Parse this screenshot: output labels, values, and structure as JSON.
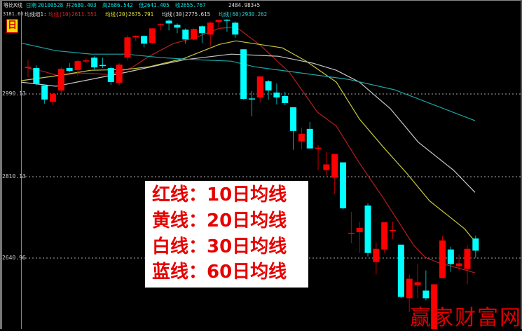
{
  "header": {
    "chart_mode": "等比K线",
    "date_label": "日期",
    "date_value": "20100528",
    "open": "开2680.403",
    "high": "高2686.542",
    "low": "低2641.405",
    "close": "收2655.767",
    "low_marker": "2484.983+5"
  },
  "ma_header": {
    "group_label": "均线组1:",
    "ma10": "均线(10)2611.551",
    "ma20": "均线(20)2675.791",
    "ma30": "均线(30)2775.615",
    "ma60": "均线(60)2930.262"
  },
  "period_icon": "日",
  "y_axis": {
    "scale": "log",
    "ticks": [
      "3181.66",
      "2990.13",
      "2810.13",
      "2640.96"
    ]
  },
  "legend": [
    "红线：10日均线",
    "黄线：20日均线",
    "白线：30日均线",
    "蓝线：60日均线"
  ],
  "watermark": "赢家财富网",
  "colors": {
    "up": "#ff0000",
    "down": "#00ffff",
    "ma10": "#b41e1e",
    "ma20": "#c8c83c",
    "ma30": "#c8c8c8",
    "ma60": "#1ea5a5",
    "grid": "#aaaaaa"
  },
  "chart_data": {
    "type": "candlestick",
    "ohlc": [
      [
        3050.9,
        3068.6,
        3028.5,
        3052.0
      ],
      [
        3049.3,
        3055.7,
        3009.3,
        3012.5
      ],
      [
        3009.3,
        3012.5,
        2968.1,
        2977.5
      ],
      [
        2972.8,
        2993.3,
        2964.9,
        2990.1
      ],
      [
        2998.0,
        3050.9,
        2991.7,
        3047.7
      ],
      [
        3049.3,
        3060.5,
        3039.7,
        3042.9
      ],
      [
        3044.5,
        3068.6,
        3031.7,
        3065.4
      ],
      [
        3066.0,
        3071.8,
        3060.5,
        3067.0
      ],
      [
        3073.5,
        3076.7,
        3044.5,
        3050.9
      ],
      [
        3056.5,
        3073.5,
        3049.3,
        3055.7
      ],
      [
        3049.3,
        3052.5,
        3010.9,
        3017.3
      ],
      [
        3015.7,
        3060.5,
        3009.3,
        3057.3
      ],
      [
        3073.5,
        3125.9,
        3067.0,
        3121.0
      ],
      [
        3121.0,
        3125.9,
        3112.7,
        3124.3
      ],
      [
        3124.3,
        3125.9,
        3097.9,
        3106.1
      ],
      [
        3107.8,
        3142.4,
        3106.1,
        3142.4
      ],
      [
        3151.5,
        3154.1,
        3137.5,
        3152.4
      ],
      [
        3160.7,
        3164.1,
        3137.5,
        3154.1
      ],
      [
        3150.7,
        3154.1,
        3130.9,
        3144.1
      ],
      [
        3139.1,
        3142.4,
        3106.1,
        3116.0
      ],
      [
        3116.0,
        3142.4,
        3114.4,
        3140.8
      ],
      [
        3147.4,
        3149.1,
        3107.8,
        3130.9
      ],
      [
        3127.6,
        3159.1,
        3099.6,
        3155.8
      ],
      [
        3157.4,
        3162.4,
        3145.7,
        3162.4
      ],
      [
        3163.0,
        3164.1,
        3134.2,
        3162.4
      ],
      [
        3155.8,
        3159.1,
        3119.3,
        3127.6
      ],
      [
        3093.0,
        3093.0,
        2977.5,
        2979.1
      ],
      [
        2980.0,
        2996.5,
        2939.9,
        2979.1
      ],
      [
        2982.2,
        3030.1,
        2971.2,
        3030.1
      ],
      [
        3018.9,
        3022.1,
        2977.5,
        2998.0
      ],
      [
        2993.3,
        3014.1,
        2966.5,
        2982.2
      ],
      [
        2985.4,
        2994.9,
        2964.9,
        2969.6
      ],
      [
        2960.2,
        2960.2,
        2866.4,
        2907.5
      ],
      [
        2884.6,
        2915.2,
        2867.9,
        2901.4
      ],
      [
        2912.1,
        2927.5,
        2869.4,
        2869.4
      ],
      [
        2870.0,
        2877.0,
        2822.9,
        2871.0
      ],
      [
        2822.9,
        2861.9,
        2811.0,
        2834.8
      ],
      [
        2806.6,
        2857.3,
        2771.3,
        2857.3
      ],
      [
        2839.3,
        2839.3,
        2739.3,
        2742.2
      ],
      [
        2691.0,
        2734.9,
        2670.8,
        2692.0
      ],
      [
        2693.4,
        2714.8,
        2651.2,
        2702.0
      ],
      [
        2748.0,
        2752.3,
        2644.2,
        2651.2
      ],
      [
        2633.1,
        2672.2,
        2608.2,
        2659.6
      ],
      [
        2658.2,
        2713.4,
        2651.2,
        2713.4
      ],
      [
        2697.0,
        2714.8,
        2679.2,
        2697.7
      ],
      [
        2668.0,
        2668.0,
        2561.8,
        2564.5
      ],
      [
        2561.8,
        2608.2,
        2534.9,
        2599.9
      ],
      [
        2587.6,
        2628.9,
        2561.8,
        2593.1
      ],
      [
        2576.7,
        2616.5,
        2557.7,
        2561.8
      ],
      [
        2485.0,
        2589.0,
        2484.98,
        2589.0
      ],
      [
        2601.3,
        2684.9,
        2601.3,
        2676.4
      ],
      [
        2658.2,
        2663.8,
        2613.7,
        2628.9
      ],
      [
        2624.8,
        2648.4,
        2616.5,
        2630.3
      ],
      [
        2619.2,
        2666.6,
        2589.0,
        2659.6
      ],
      [
        2680.4,
        2686.5,
        2641.4,
        2655.8
      ]
    ],
    "moving_averages": [
      {
        "name": "均线(10)",
        "color_key": "ma10",
        "points": [
          [
            1,
            3049.3
          ],
          [
            2.94,
            3041.1
          ],
          [
            4.63,
            3031.5
          ],
          [
            7.17,
            3037.9
          ],
          [
            10.89,
            3034.7
          ],
          [
            13.43,
            3049.3
          ],
          [
            15.62,
            3076.7
          ],
          [
            18.5,
            3106.1
          ],
          [
            21.29,
            3120.9
          ],
          [
            24.08,
            3142.4
          ],
          [
            26.1,
            3145.7
          ],
          [
            28.9,
            3104.4
          ],
          [
            32.53,
            3039.5
          ],
          [
            35.91,
            2949.3
          ],
          [
            38.19,
            2918.3
          ],
          [
            40.98,
            2837.7
          ],
          [
            43.86,
            2763.7
          ],
          [
            47.49,
            2667.5
          ],
          [
            48.93,
            2642.3
          ],
          [
            50.62,
            2631.1
          ],
          [
            52.82,
            2621.4
          ],
          [
            54.93,
            2611.6
          ]
        ]
      },
      {
        "name": "均线(20)",
        "color_key": "ma20",
        "points": [
          [
            0.15,
            3020.3
          ],
          [
            4.38,
            3031.5
          ],
          [
            8.61,
            3044.3
          ],
          [
            12.83,
            3046.0
          ],
          [
            15.62,
            3052.4
          ],
          [
            19.85,
            3071.8
          ],
          [
            24.08,
            3104.4
          ],
          [
            26.1,
            3112.7
          ],
          [
            28.9,
            3104.4
          ],
          [
            31.68,
            3096.3
          ],
          [
            34.56,
            3065.3
          ],
          [
            38.19,
            3017.1
          ],
          [
            40.98,
            2933.8
          ],
          [
            43.86,
            2872.4
          ],
          [
            46.65,
            2816.8
          ],
          [
            49.44,
            2757.8
          ],
          [
            53.66,
            2700.2
          ],
          [
            54.85,
            2675.8
          ]
        ]
      },
      {
        "name": "均线(30)",
        "color_key": "ma30",
        "points": [
          [
            0.15,
            3017.1
          ],
          [
            4.38,
            3007.6
          ],
          [
            8.61,
            3023.5
          ],
          [
            12.83,
            3039.5
          ],
          [
            17.06,
            3057.2
          ],
          [
            19.85,
            3068.6
          ],
          [
            25.51,
            3081.6
          ],
          [
            31.18,
            3076.7
          ],
          [
            35.4,
            3060.5
          ],
          [
            38.19,
            3044.3
          ],
          [
            40.98,
            3017.1
          ],
          [
            44.7,
            2957.1
          ],
          [
            48.08,
            2883.0
          ],
          [
            52.31,
            2822.8
          ],
          [
            54.93,
            2775.6
          ]
        ]
      },
      {
        "name": "均线(60)",
        "color_key": "ma60",
        "points": [
          [
            0.15,
            3107.7
          ],
          [
            4.38,
            3089.7
          ],
          [
            8.61,
            3081.6
          ],
          [
            12.83,
            3081.6
          ],
          [
            17.06,
            3073.4
          ],
          [
            21.29,
            3068.6
          ],
          [
            25.51,
            3065.3
          ],
          [
            28.3,
            3052.4
          ],
          [
            33.97,
            3037.9
          ],
          [
            39.63,
            3023.5
          ],
          [
            45.21,
            2999.6
          ],
          [
            54.93,
            2930.3
          ]
        ]
      }
    ]
  }
}
